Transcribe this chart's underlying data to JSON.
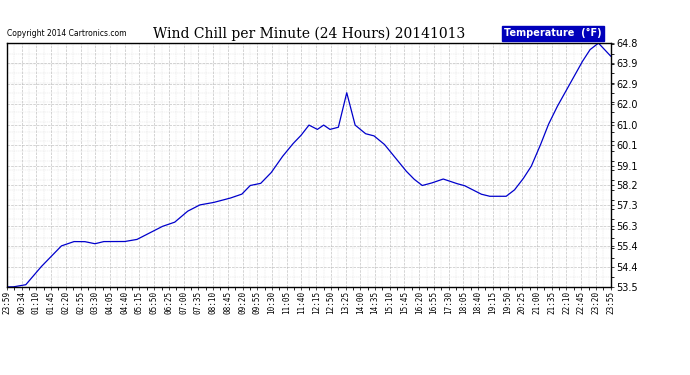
{
  "title": "Wind Chill per Minute (24 Hours) 20141013",
  "copyright": "Copyright 2014 Cartronics.com",
  "legend_label": "Temperature  (°F)",
  "line_color": "#0000CC",
  "bg_color": "#ffffff",
  "plot_bg_color": "#ffffff",
  "grid_color": "#aaaaaa",
  "ylim": [
    53.5,
    64.8
  ],
  "yticks": [
    53.5,
    54.4,
    55.4,
    56.3,
    57.3,
    58.2,
    59.1,
    60.1,
    61.0,
    62.0,
    62.9,
    63.9,
    64.8
  ],
  "xtick_labels": [
    "23:59",
    "00:34",
    "01:10",
    "01:45",
    "02:20",
    "02:55",
    "03:30",
    "04:05",
    "04:40",
    "05:15",
    "05:50",
    "06:25",
    "07:00",
    "07:35",
    "08:10",
    "08:45",
    "09:20",
    "09:55",
    "10:30",
    "11:05",
    "11:40",
    "12:15",
    "12:50",
    "13:25",
    "14:00",
    "14:35",
    "15:10",
    "15:45",
    "16:20",
    "16:55",
    "17:30",
    "18:05",
    "18:40",
    "19:15",
    "19:50",
    "20:25",
    "21:00",
    "21:35",
    "22:10",
    "22:45",
    "23:20",
    "23:55"
  ],
  "num_points": 1440,
  "key_x": [
    0,
    15,
    45,
    80,
    110,
    130,
    160,
    185,
    210,
    230,
    250,
    280,
    310,
    340,
    370,
    400,
    430,
    460,
    490,
    510,
    530,
    560,
    580,
    605,
    630,
    655,
    680,
    700,
    720,
    740,
    755,
    770,
    790,
    810,
    830,
    855,
    875,
    900,
    925,
    950,
    970,
    990,
    1010,
    1040,
    1070,
    1090,
    1110,
    1130,
    1150,
    1170,
    1190,
    1210,
    1230,
    1250,
    1270,
    1290,
    1310,
    1330,
    1350,
    1370,
    1390,
    1410,
    1439
  ],
  "key_y": [
    53.5,
    53.5,
    53.6,
    54.4,
    55.0,
    55.4,
    55.6,
    55.6,
    55.5,
    55.6,
    55.6,
    55.6,
    55.7,
    56.0,
    56.3,
    56.5,
    57.0,
    57.3,
    57.4,
    57.5,
    57.6,
    57.8,
    58.2,
    58.3,
    58.8,
    59.5,
    60.1,
    60.5,
    61.0,
    60.8,
    61.0,
    60.8,
    60.9,
    62.5,
    61.0,
    60.6,
    60.5,
    60.1,
    59.5,
    58.9,
    58.5,
    58.2,
    58.3,
    58.5,
    58.3,
    58.2,
    58.0,
    57.8,
    57.7,
    57.7,
    57.7,
    58.0,
    58.5,
    59.1,
    60.0,
    61.0,
    61.8,
    62.5,
    63.2,
    63.9,
    64.5,
    64.8,
    64.2
  ]
}
